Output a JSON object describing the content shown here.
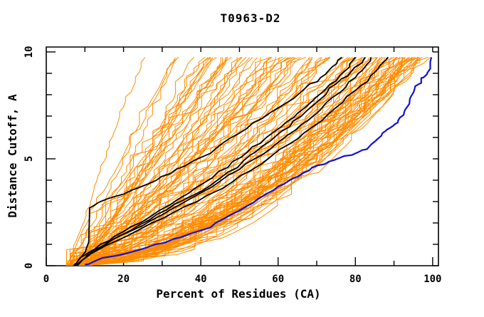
{
  "page": {
    "title": "T0963-D2"
  },
  "colors": {
    "background": "#ffffff",
    "frame": "#000000",
    "orange": "#ff8c00",
    "black": "#000000",
    "blue": "#1111d0"
  },
  "chart_data": {
    "type": "line",
    "title": "T0963-D2",
    "xlabel": "Percent of Residues (CA)",
    "ylabel": "Distance Cutoff, A",
    "xlim": [
      0,
      101.5
    ],
    "ylim": [
      0,
      10.23
    ],
    "grid": false,
    "legend": "none",
    "x_major_ticks": [
      0,
      20,
      40,
      60,
      80,
      100
    ],
    "x_minor_ticks": [
      10,
      30,
      50,
      70,
      90
    ],
    "x_top_edge_ticks": [
      10,
      20,
      30,
      40,
      50,
      60,
      70,
      80,
      90,
      100
    ],
    "y_major_ticks": [
      0,
      5,
      10
    ],
    "y_minor_ticks": [
      1,
      2,
      3,
      4,
      6,
      7,
      8,
      9
    ],
    "curve_y_top": 9.75,
    "series": [
      {
        "name": "blue-curve",
        "role": "highlighted reference model",
        "color_key": "blue",
        "width": 2.2,
        "points": [
          [
            10,
            0.05
          ],
          [
            13,
            0.25
          ],
          [
            19,
            0.5
          ],
          [
            26,
            0.85
          ],
          [
            33,
            1.25
          ],
          [
            40,
            1.65
          ],
          [
            46,
            2.2
          ],
          [
            52,
            2.8
          ],
          [
            56,
            3.25
          ],
          [
            60,
            3.7
          ],
          [
            64,
            4.1
          ],
          [
            68,
            4.45
          ],
          [
            72,
            4.75
          ],
          [
            76,
            5.05
          ],
          [
            80,
            5.25
          ],
          [
            83,
            5.45
          ],
          [
            85,
            5.8
          ],
          [
            87,
            6.2
          ],
          [
            89,
            6.45
          ],
          [
            91,
            6.7
          ],
          [
            92.5,
            7.05
          ],
          [
            93.5,
            7.45
          ],
          [
            94.5,
            7.95
          ],
          [
            95.5,
            8.4
          ],
          [
            97,
            8.65
          ],
          [
            98.5,
            8.95
          ],
          [
            99.3,
            9.35
          ],
          [
            99.7,
            9.75
          ]
        ]
      },
      {
        "name": "black-curve-1",
        "role": "highlighted model",
        "color_key": "black",
        "width": 1.8,
        "points": [
          [
            7,
            0
          ],
          [
            9,
            0.4
          ],
          [
            11,
            1.1
          ],
          [
            11.2,
            2.7
          ],
          [
            14,
            3.0
          ],
          [
            20,
            3.35
          ],
          [
            26,
            3.8
          ],
          [
            32,
            4.3
          ],
          [
            38,
            4.9
          ],
          [
            44,
            5.5
          ],
          [
            50,
            6.2
          ],
          [
            56,
            6.9
          ],
          [
            62,
            7.6
          ],
          [
            67,
            8.3
          ],
          [
            71,
            8.8
          ],
          [
            74,
            9.3
          ],
          [
            76.5,
            9.75
          ]
        ]
      },
      {
        "name": "black-curve-2",
        "role": "highlighted model",
        "color_key": "black",
        "width": 1.8,
        "points": [
          [
            7.5,
            0
          ],
          [
            10,
            0.5
          ],
          [
            14,
            1.0
          ],
          [
            20,
            1.6
          ],
          [
            27,
            2.3
          ],
          [
            34,
            3.1
          ],
          [
            41,
            3.9
          ],
          [
            47,
            4.6
          ],
          [
            52,
            5.3
          ],
          [
            57,
            6.0
          ],
          [
            62,
            6.7
          ],
          [
            67,
            7.4
          ],
          [
            72,
            8.2
          ],
          [
            76,
            8.9
          ],
          [
            78.5,
            9.3
          ],
          [
            80,
            9.75
          ]
        ]
      },
      {
        "name": "black-curve-3",
        "role": "highlighted model",
        "color_key": "black",
        "width": 1.8,
        "points": [
          [
            7.5,
            0
          ],
          [
            11,
            0.6
          ],
          [
            17,
            1.2
          ],
          [
            24,
            1.9
          ],
          [
            31,
            2.6
          ],
          [
            38,
            3.3
          ],
          [
            45,
            4.1
          ],
          [
            51,
            4.9
          ],
          [
            56,
            5.6
          ],
          [
            61,
            6.3
          ],
          [
            66,
            7.0
          ],
          [
            71,
            7.8
          ],
          [
            75,
            8.5
          ],
          [
            79,
            9.1
          ],
          [
            82.5,
            9.75
          ]
        ]
      },
      {
        "name": "black-curve-4",
        "role": "highlighted model",
        "color_key": "black",
        "width": 1.8,
        "points": [
          [
            8,
            0
          ],
          [
            12,
            0.7
          ],
          [
            19,
            1.4
          ],
          [
            27,
            2.1
          ],
          [
            35,
            2.9
          ],
          [
            43,
            3.7
          ],
          [
            50,
            4.5
          ],
          [
            56,
            5.2
          ],
          [
            61,
            5.9
          ],
          [
            66,
            6.6
          ],
          [
            71,
            7.3
          ],
          [
            76,
            8.1
          ],
          [
            80,
            8.8
          ],
          [
            82.5,
            9.3
          ],
          [
            84,
            9.75
          ]
        ]
      },
      {
        "name": "black-curve-5",
        "role": "highlighted model",
        "color_key": "black",
        "width": 1.8,
        "points": [
          [
            8,
            0
          ],
          [
            13,
            0.7
          ],
          [
            21,
            1.4
          ],
          [
            30,
            2.2
          ],
          [
            39,
            3.0
          ],
          [
            48,
            3.9
          ],
          [
            56,
            4.8
          ],
          [
            63,
            5.7
          ],
          [
            69,
            6.5
          ],
          [
            75,
            7.4
          ],
          [
            80,
            8.2
          ],
          [
            84,
            8.9
          ],
          [
            86.5,
            9.4
          ],
          [
            88.5,
            9.75
          ]
        ]
      }
    ],
    "ensemble": {
      "name": "orange-curves",
      "role": "model ensemble (cumulative distance-cutoff curves)",
      "color_key": "orange",
      "width": 1.0,
      "count": 110,
      "seed": 20181,
      "x_start_range": [
        5,
        11
      ],
      "x_end_range": [
        17,
        100.5
      ],
      "end_bias_exponent": 0.6,
      "y_top": 9.75,
      "vertical_jump_prob": 0.3,
      "noise_step": 0.5,
      "steps_min": 34,
      "steps_max": 48,
      "shape": {
        "e_base": 1.2,
        "e_span_coeff": 0.75,
        "e_jitter": 0.24,
        "e_min": 0.42,
        "e_max": 1.3
      }
    }
  }
}
